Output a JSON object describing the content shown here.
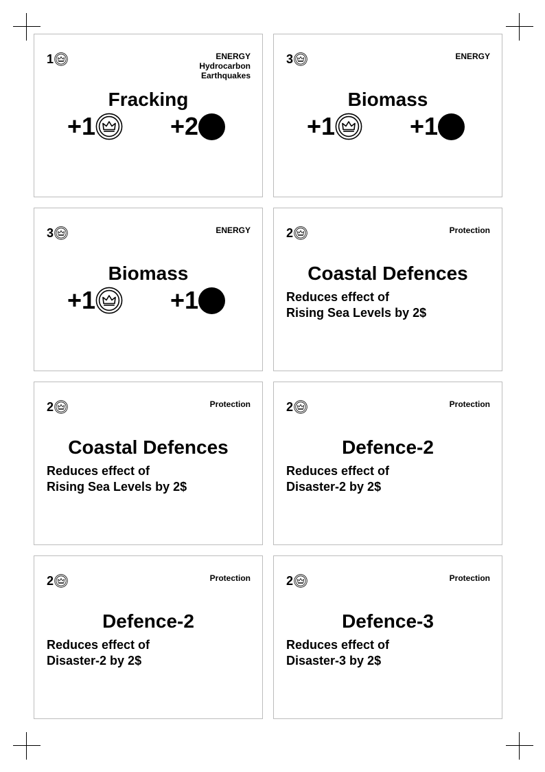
{
  "icons": {
    "coin": "crown-coin-icon",
    "resource": "black-dot-icon"
  },
  "cards": [
    {
      "cost": "1",
      "category": [
        "ENERGY",
        "Hydrocarbon",
        "Earthquakes"
      ],
      "title": "Fracking",
      "effects": [
        {
          "value": "+1",
          "icon": "crown-coin-icon"
        },
        {
          "value": "+2",
          "icon": "black-dot-icon"
        }
      ]
    },
    {
      "cost": "3",
      "category": [
        "ENERGY"
      ],
      "title": "Biomass",
      "effects": [
        {
          "value": "+1",
          "icon": "crown-coin-icon"
        },
        {
          "value": "+1",
          "icon": "black-dot-icon"
        }
      ]
    },
    {
      "cost": "3",
      "category": [
        "ENERGY"
      ],
      "title": "Biomass",
      "effects": [
        {
          "value": "+1",
          "icon": "crown-coin-icon"
        },
        {
          "value": "+1",
          "icon": "black-dot-icon"
        }
      ]
    },
    {
      "cost": "2",
      "category": [
        "Protection"
      ],
      "title": "Coastal Defences",
      "description": [
        "Reduces effect of",
        "Rising Sea Levels by 2$"
      ]
    },
    {
      "cost": "2",
      "category": [
        "Protection"
      ],
      "title": "Coastal Defences",
      "description": [
        "Reduces effect of",
        "Rising Sea Levels by 2$"
      ]
    },
    {
      "cost": "2",
      "category": [
        "Protection"
      ],
      "title": "Defence-2",
      "description": [
        "Reduces effect of",
        "Disaster-2 by 2$"
      ]
    },
    {
      "cost": "2",
      "category": [
        "Protection"
      ],
      "title": "Defence-2",
      "description": [
        "Reduces effect of",
        "Disaster-2 by 2$"
      ]
    },
    {
      "cost": "2",
      "category": [
        "Protection"
      ],
      "title": "Defence-3",
      "description": [
        "Reduces effect of",
        "Disaster-3 by 2$"
      ]
    }
  ]
}
